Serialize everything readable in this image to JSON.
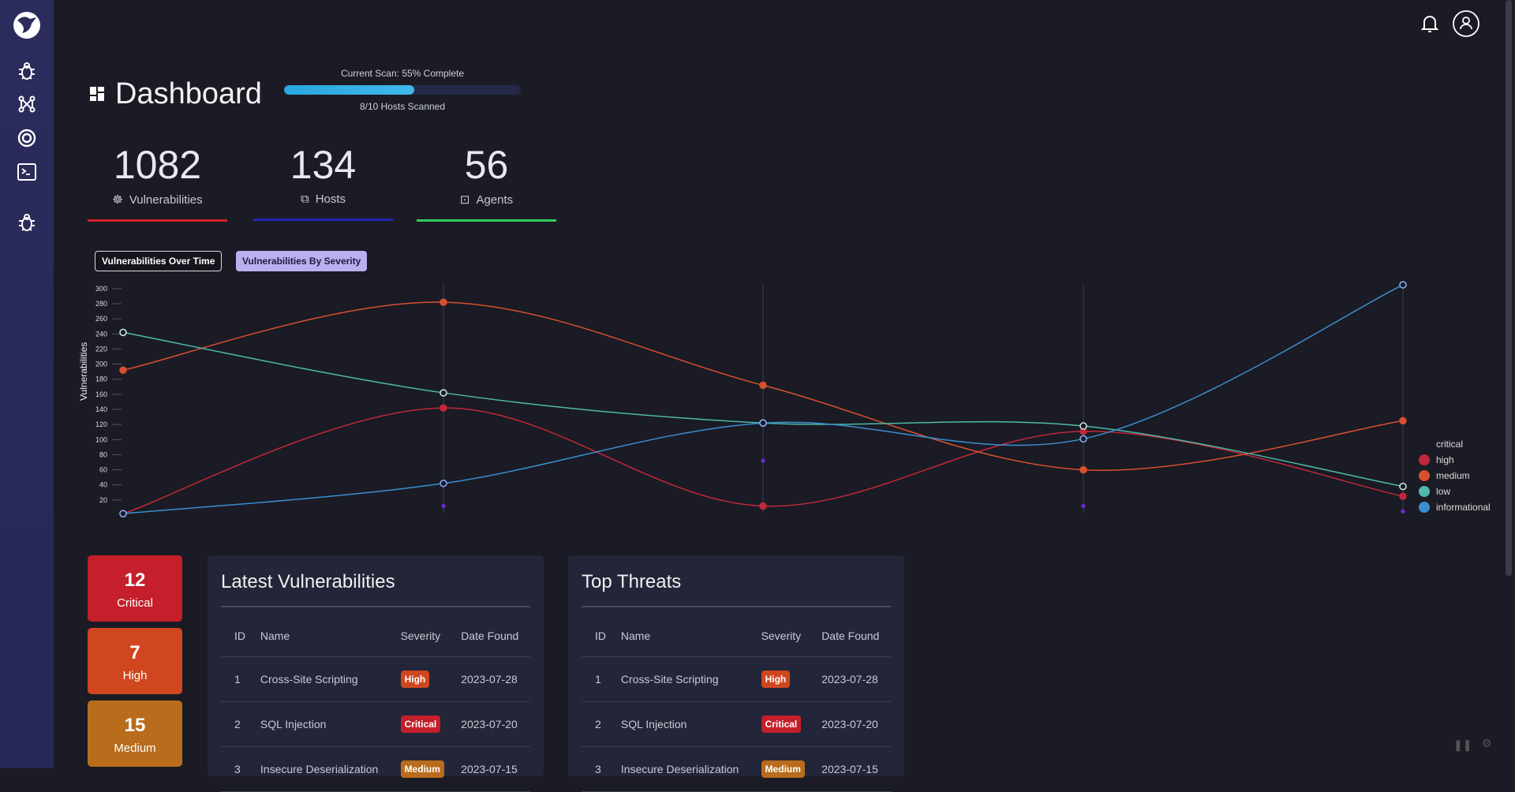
{
  "header": {
    "title": "Dashboard",
    "scan_label": "Current Scan: 55% Complete",
    "scan_progress": 55,
    "hosts_scanned": "8/10 Hosts Scanned"
  },
  "sidebar": {
    "items": [
      {
        "icon": "bug-icon"
      },
      {
        "icon": "network-icon"
      },
      {
        "icon": "target-icon"
      },
      {
        "icon": "terminal-icon"
      },
      {
        "icon": "bug-icon"
      }
    ]
  },
  "stats": [
    {
      "value": "1082",
      "label": "Vulnerabilities",
      "color": "#d11f2a"
    },
    {
      "value": "134",
      "label": "Hosts",
      "color": "#2424b8"
    },
    {
      "value": "56",
      "label": "Agents",
      "color": "#2ecc5a"
    }
  ],
  "tabs": [
    {
      "label": "Vulnerabilities Over Time"
    },
    {
      "label": "Vulnerabilities By Severity",
      "active": true
    }
  ],
  "chart_data": {
    "type": "line",
    "ylabel": "Vulnerabilities",
    "ylim": [
      0,
      300
    ],
    "yticks": [
      20,
      40,
      60,
      80,
      100,
      120,
      140,
      160,
      180,
      200,
      220,
      240,
      260,
      280,
      300
    ],
    "legend_placement": "right",
    "grid": false,
    "series": [
      {
        "name": "critical",
        "color": "#6a2bd0",
        "values": [
          0,
          12,
          72,
          12,
          5
        ]
      },
      {
        "name": "high",
        "color": "#c0283a",
        "values": [
          2,
          142,
          12,
          111,
          25
        ]
      },
      {
        "name": "medium",
        "color": "#d85030",
        "values": [
          192,
          282,
          172,
          60,
          125
        ]
      },
      {
        "name": "low",
        "color": "#4fb8a8",
        "values": [
          242,
          162,
          122,
          118,
          38
        ]
      },
      {
        "name": "informational",
        "color": "#3a8fd0",
        "values": [
          2,
          42,
          122,
          101,
          305
        ]
      }
    ]
  },
  "severity_cards": [
    {
      "count": "12",
      "label": "Critical",
      "color": "#c41f2a"
    },
    {
      "count": "7",
      "label": "High",
      "color": "#d0461e"
    },
    {
      "count": "15",
      "label": "Medium",
      "color": "#b86c1c"
    }
  ],
  "columns": [
    "ID",
    "Name",
    "Severity",
    "Date Found"
  ],
  "latest": {
    "title": "Latest Vulnerabilities",
    "rows": [
      [
        "1",
        "Cross-Site Scripting",
        "High",
        "2023-07-28"
      ],
      [
        "2",
        "SQL Injection",
        "Critical",
        "2023-07-20"
      ],
      [
        "3",
        "Insecure Deserialization",
        "Medium",
        "2023-07-15"
      ]
    ]
  },
  "threats": {
    "title": "Top Threats",
    "rows": [
      [
        "1",
        "Cross-Site Scripting",
        "High",
        "2023-07-28"
      ],
      [
        "2",
        "SQL Injection",
        "Critical",
        "2023-07-20"
      ],
      [
        "3",
        "Insecure Deserialization",
        "Medium",
        "2023-07-15"
      ]
    ]
  },
  "badge_colors": {
    "High": "#d0461e",
    "Critical": "#c41f2a",
    "Medium": "#b86c1c"
  }
}
